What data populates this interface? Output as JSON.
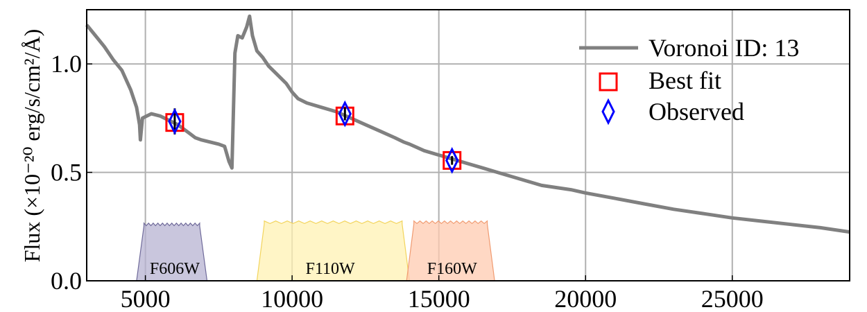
{
  "chart_data": {
    "type": "line",
    "title": "",
    "xlabel": "",
    "ylabel": "Flux (×10⁻²⁰ erg/s/cm²/Å)",
    "xlim": [
      3000,
      29000
    ],
    "ylim": [
      0.0,
      1.25
    ],
    "xticks": [
      "5000",
      "10000",
      "15000",
      "20000",
      "25000"
    ],
    "yticks": [
      "0.0",
      "0.5",
      "1.0"
    ],
    "grid": true,
    "legend_position": "top-right",
    "colors": {
      "spectrum": "#808080",
      "best_fit": "#ff0000",
      "observed": "#0000ff",
      "grid": "#b0b0b0",
      "F606W_fill": "#b7b3d1",
      "F606W_edge": "#6f6a9a",
      "F110W_fill": "#fff2b3",
      "F110W_edge": "#f2d45c",
      "F160W_fill": "#ffcbb0",
      "F160W_edge": "#f09a70"
    },
    "series": [
      {
        "name": "Voronoi ID: 13",
        "kind": "line",
        "x": [
          3000,
          3300,
          3600,
          3900,
          4200,
          4500,
          4700,
          4800,
          4830,
          4900,
          5200,
          5500,
          5800,
          6100,
          6500,
          6700,
          6900,
          7200,
          7500,
          7700,
          7850,
          7950,
          8050,
          8150,
          8300,
          8450,
          8550,
          8650,
          8800,
          9000,
          9200,
          9500,
          9800,
          10000,
          10200,
          10500,
          11000,
          11500,
          12000,
          12500,
          13000,
          13500,
          13800,
          14000,
          14500,
          15000,
          15500,
          16000,
          16500,
          17000,
          17500,
          18000,
          18500,
          19000,
          19500,
          20000,
          21000,
          22000,
          23000,
          24000,
          25000,
          26000,
          27000,
          28000,
          29000
        ],
        "y": [
          1.18,
          1.13,
          1.08,
          1.02,
          0.97,
          0.88,
          0.8,
          0.72,
          0.65,
          0.75,
          0.77,
          0.76,
          0.74,
          0.72,
          0.68,
          0.66,
          0.65,
          0.64,
          0.63,
          0.62,
          0.55,
          0.52,
          1.05,
          1.13,
          1.12,
          1.17,
          1.22,
          1.13,
          1.06,
          1.03,
          0.99,
          0.95,
          0.91,
          0.87,
          0.84,
          0.82,
          0.8,
          0.78,
          0.75,
          0.72,
          0.69,
          0.66,
          0.64,
          0.63,
          0.6,
          0.58,
          0.56,
          0.54,
          0.52,
          0.5,
          0.48,
          0.46,
          0.44,
          0.43,
          0.42,
          0.405,
          0.38,
          0.355,
          0.33,
          0.31,
          0.29,
          0.275,
          0.26,
          0.245,
          0.225
        ]
      },
      {
        "name": "Best fit",
        "kind": "marker-square",
        "x": [
          6000,
          11800,
          15450
        ],
        "y": [
          0.73,
          0.76,
          0.555
        ]
      },
      {
        "name": "Observed",
        "kind": "marker-diamond",
        "x": [
          6000,
          11800,
          15450
        ],
        "y": [
          0.735,
          0.77,
          0.555
        ],
        "yerr": [
          0.06,
          0.03,
          0.02
        ]
      }
    ],
    "filters": [
      {
        "name": "F606W",
        "lo": 4700,
        "hi": 7100,
        "level": 0.26,
        "fill_key": "F606W_fill",
        "edge_key": "F606W_edge",
        "label_x": 6000
      },
      {
        "name": "F110W",
        "lo": 8800,
        "hi": 14000,
        "level": 0.27,
        "fill_key": "F110W_fill",
        "edge_key": "F110W_edge",
        "label_x": 11300
      },
      {
        "name": "F160W",
        "lo": 13900,
        "hi": 16900,
        "level": 0.27,
        "fill_key": "F160W_fill",
        "edge_key": "F160W_edge",
        "label_x": 15450
      }
    ]
  }
}
